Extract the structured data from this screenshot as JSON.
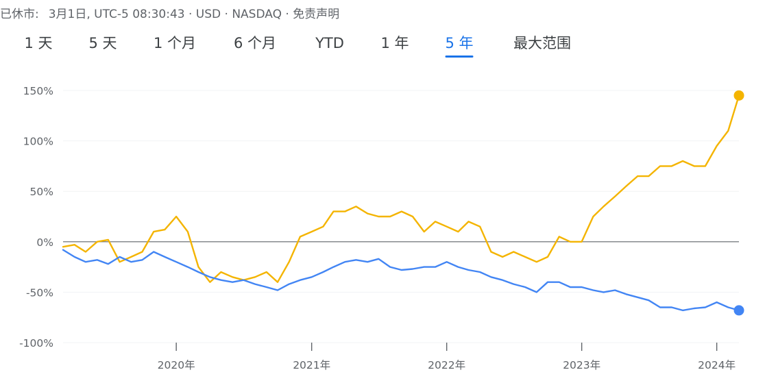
{
  "status": {
    "closed_label": "已休市:",
    "details": "3月1日, UTC-5 08:30:43 · USD · NASDAQ · 免责声明"
  },
  "range_tabs": [
    {
      "label": "1 天",
      "active": false
    },
    {
      "label": "5 天",
      "active": false
    },
    {
      "label": "1 个月",
      "active": false
    },
    {
      "label": "6 个月",
      "active": false
    },
    {
      "label": "YTD",
      "active": false
    },
    {
      "label": "1 年",
      "active": false
    },
    {
      "label": "5 年",
      "active": true
    },
    {
      "label": "最大范围",
      "active": false
    }
  ],
  "colors": {
    "accent": "#1a73e8",
    "series_yellow": "#f4b400",
    "series_blue": "#4285f4",
    "gridline": "#f1f3f4",
    "zero_line": "#5f6368"
  },
  "chart_data": {
    "type": "line",
    "y_unit": "%",
    "ylim": [
      -100,
      155
    ],
    "xlim": [
      "2019-03-01",
      "2024-03-01"
    ],
    "y_ticks": [
      150,
      100,
      50,
      0,
      -50,
      -100
    ],
    "y_tick_labels": [
      "150%",
      "100%",
      "50%",
      "0%",
      "-50%",
      "-100%"
    ],
    "x_ticks": [
      "2020-01-01",
      "2021-01-01",
      "2022-01-01",
      "2023-01-01",
      "2024-01-01"
    ],
    "x_tick_labels": [
      "2020年",
      "2021年",
      "2022年",
      "2023年",
      "2024年"
    ],
    "grid": true,
    "series": [
      {
        "color": "#f4b400",
        "x": [
          "2019-03-01",
          "2019-04-01",
          "2019-05-01",
          "2019-06-01",
          "2019-07-01",
          "2019-08-01",
          "2019-09-01",
          "2019-10-01",
          "2019-11-01",
          "2019-12-01",
          "2020-01-01",
          "2020-02-01",
          "2020-03-01",
          "2020-04-01",
          "2020-05-01",
          "2020-06-01",
          "2020-07-01",
          "2020-08-01",
          "2020-09-01",
          "2020-10-01",
          "2020-11-01",
          "2020-12-01",
          "2021-01-01",
          "2021-02-01",
          "2021-03-01",
          "2021-04-01",
          "2021-05-01",
          "2021-06-01",
          "2021-07-01",
          "2021-08-01",
          "2021-09-01",
          "2021-10-01",
          "2021-11-01",
          "2021-12-01",
          "2022-01-01",
          "2022-02-01",
          "2022-03-01",
          "2022-04-01",
          "2022-05-01",
          "2022-06-01",
          "2022-07-01",
          "2022-08-01",
          "2022-09-01",
          "2022-10-01",
          "2022-11-01",
          "2022-12-01",
          "2023-01-01",
          "2023-02-01",
          "2023-03-01",
          "2023-04-01",
          "2023-05-01",
          "2023-06-01",
          "2023-07-01",
          "2023-08-01",
          "2023-09-01",
          "2023-10-01",
          "2023-11-01",
          "2023-12-01",
          "2024-01-01",
          "2024-02-01",
          "2024-03-01"
        ],
        "values": [
          -5,
          -3,
          -10,
          0,
          2,
          -20,
          -15,
          -10,
          10,
          12,
          25,
          10,
          -25,
          -40,
          -30,
          -35,
          -38,
          -35,
          -30,
          -40,
          -20,
          5,
          10,
          15,
          30,
          30,
          35,
          28,
          25,
          25,
          30,
          25,
          10,
          20,
          15,
          10,
          20,
          15,
          -10,
          -15,
          -10,
          -15,
          -20,
          -15,
          5,
          0,
          0,
          25,
          35,
          45,
          55,
          65,
          65,
          75,
          75,
          80,
          75,
          75,
          95,
          110,
          145
        ]
      },
      {
        "color": "#4285f4",
        "x": [
          "2019-03-01",
          "2019-04-01",
          "2019-05-01",
          "2019-06-01",
          "2019-07-01",
          "2019-08-01",
          "2019-09-01",
          "2019-10-01",
          "2019-11-01",
          "2019-12-01",
          "2020-01-01",
          "2020-02-01",
          "2020-03-01",
          "2020-04-01",
          "2020-05-01",
          "2020-06-01",
          "2020-07-01",
          "2020-08-01",
          "2020-09-01",
          "2020-10-01",
          "2020-11-01",
          "2020-12-01",
          "2021-01-01",
          "2021-02-01",
          "2021-03-01",
          "2021-04-01",
          "2021-05-01",
          "2021-06-01",
          "2021-07-01",
          "2021-08-01",
          "2021-09-01",
          "2021-10-01",
          "2021-11-01",
          "2021-12-01",
          "2022-01-01",
          "2022-02-01",
          "2022-03-01",
          "2022-04-01",
          "2022-05-01",
          "2022-06-01",
          "2022-07-01",
          "2022-08-01",
          "2022-09-01",
          "2022-10-01",
          "2022-11-01",
          "2022-12-01",
          "2023-01-01",
          "2023-02-01",
          "2023-03-01",
          "2023-04-01",
          "2023-05-01",
          "2023-06-01",
          "2023-07-01",
          "2023-08-01",
          "2023-09-01",
          "2023-10-01",
          "2023-11-01",
          "2023-12-01",
          "2024-01-01",
          "2024-02-01",
          "2024-03-01"
        ],
        "values": [
          -8,
          -15,
          -20,
          -18,
          -22,
          -15,
          -20,
          -18,
          -10,
          -15,
          -20,
          -25,
          -30,
          -35,
          -38,
          -40,
          -38,
          -42,
          -45,
          -48,
          -42,
          -38,
          -35,
          -30,
          -25,
          -20,
          -18,
          -20,
          -17,
          -25,
          -28,
          -27,
          -25,
          -25,
          -20,
          -25,
          -28,
          -30,
          -35,
          -38,
          -42,
          -45,
          -50,
          -40,
          -40,
          -45,
          -45,
          -48,
          -50,
          -48,
          -52,
          -55,
          -58,
          -65,
          -65,
          -68,
          -66,
          -65,
          -60,
          -65,
          -68
        ]
      }
    ]
  }
}
